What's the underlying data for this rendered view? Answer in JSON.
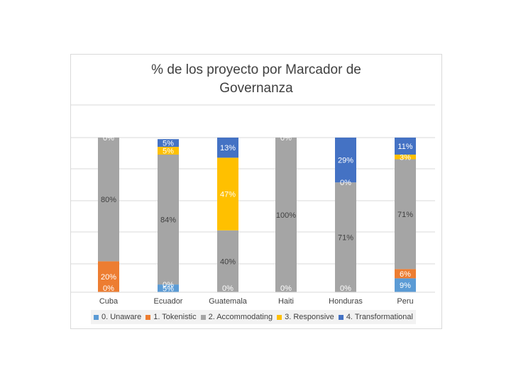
{
  "chart_data": {
    "type": "bar",
    "stacked": true,
    "percent_stacked": true,
    "title_lines": [
      "% de los proyecto por Marcador de",
      "Governanza"
    ],
    "categories": [
      "Cuba",
      "Ecuador",
      "Guatemala",
      "Haiti",
      "Honduras",
      "Peru"
    ],
    "series": [
      {
        "name": "0. Unaware",
        "color": "#5b9bd5",
        "values": [
          0,
          5,
          0,
          0,
          0,
          9
        ],
        "labels": [
          "0%",
          "5%",
          "0%",
          "0%",
          "0%",
          "9%"
        ]
      },
      {
        "name": "1. Tokenistic",
        "color": "#ed7d31",
        "values": [
          20,
          0,
          0,
          0,
          0,
          6
        ],
        "labels": [
          "20%",
          "0%",
          "",
          "",
          "",
          "6%"
        ]
      },
      {
        "name": "2. Accommodating",
        "color": "#a5a5a5",
        "values": [
          80,
          84,
          40,
          100,
          71,
          71
        ],
        "labels": [
          "80%",
          "84%",
          "40%",
          "100%",
          "71%",
          "71%"
        ]
      },
      {
        "name": "3. Responsive",
        "color": "#ffc000",
        "values": [
          0,
          5,
          47,
          0,
          0,
          3
        ],
        "labels": [
          "0%",
          "5%",
          "47%",
          "0%",
          "0%",
          "3%"
        ]
      },
      {
        "name": "4. Transformational",
        "color": "#4472c4",
        "values": [
          0,
          5,
          13,
          0,
          29,
          11
        ],
        "labels": [
          "",
          "5%",
          "13%",
          "",
          "29%",
          "11%"
        ]
      }
    ],
    "ylim": [
      0,
      100
    ],
    "grid": true,
    "legend_position": "bottom"
  }
}
